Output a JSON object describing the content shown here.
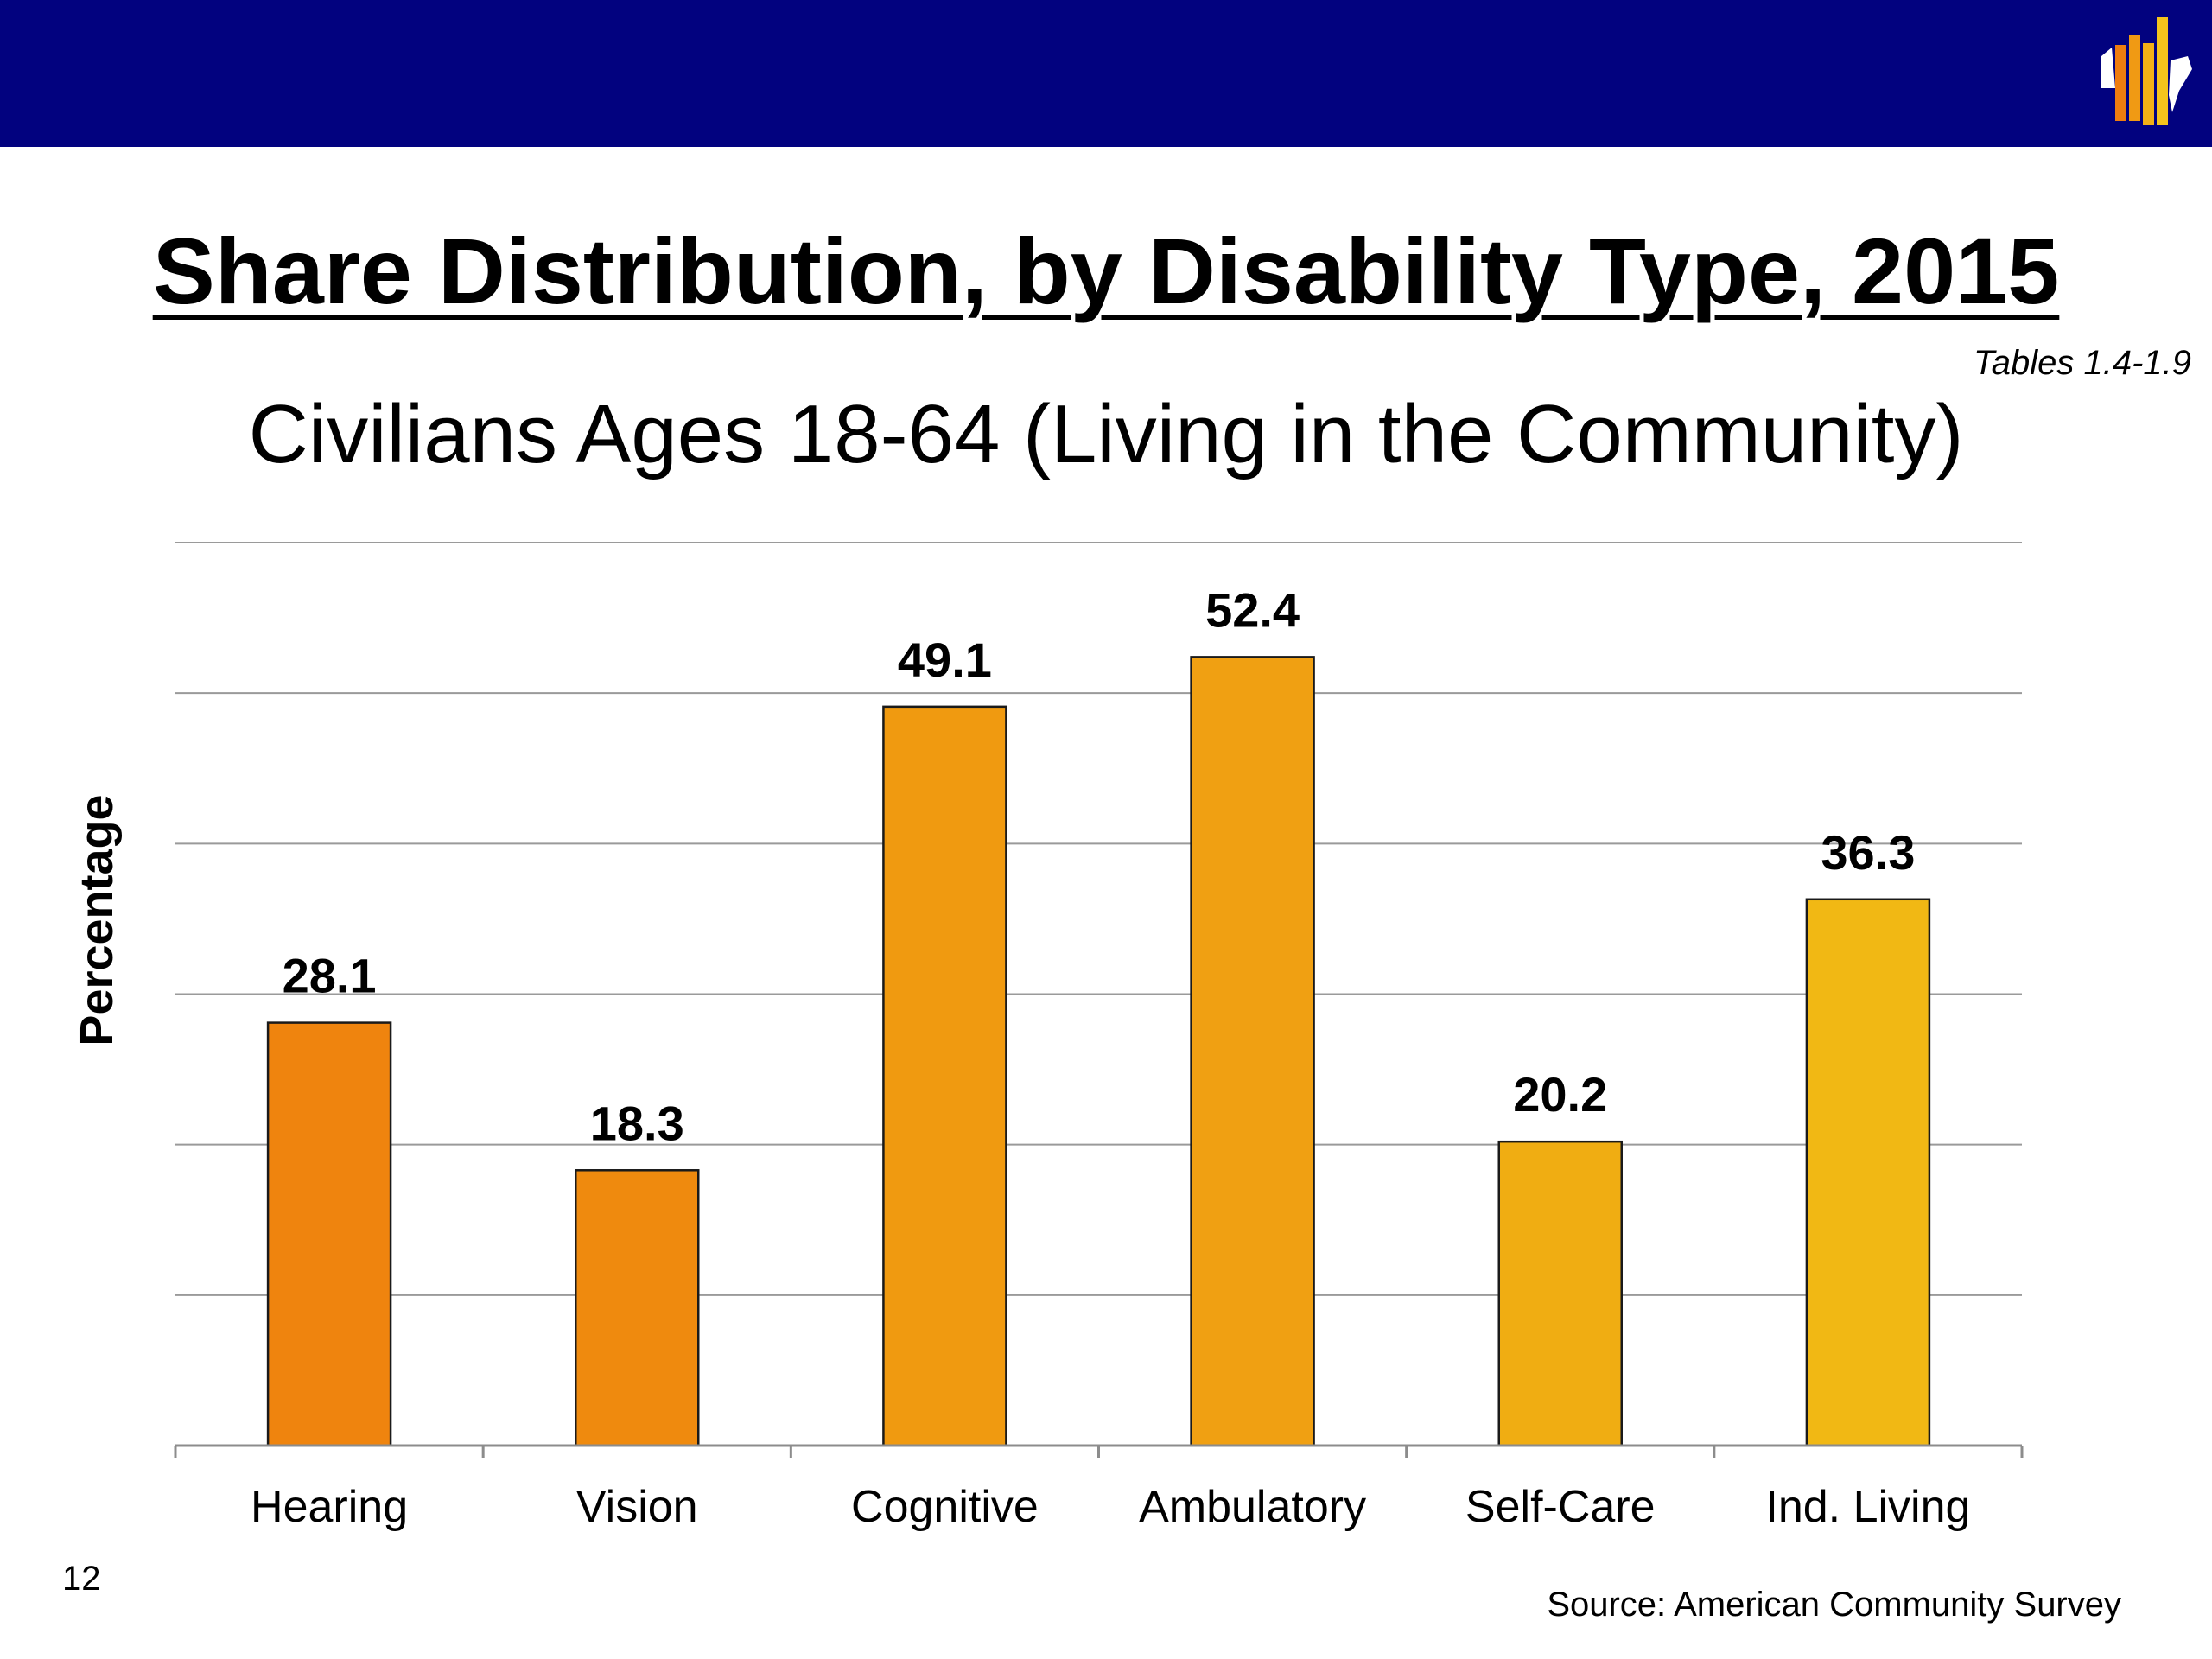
{
  "slide": {
    "title": "Share Distribution, by Disability Type, 2015",
    "subtitle": "Civilians Ages 18-64 (Living in the Community)",
    "tables_ref": "Tables 1.4-1.9",
    "slide_number": "12",
    "source": "Source: American Community Survey",
    "header_color": "#02027f",
    "logo_icon": "us-map-bar-chart-icon"
  },
  "chart_data": {
    "type": "bar",
    "title": "",
    "xlabel": "",
    "ylabel": "Percentage",
    "categories": [
      "Hearing",
      "Vision",
      "Cognitive",
      "Ambulatory",
      "Self-Care",
      "Ind. Living"
    ],
    "series": [
      {
        "values": [
          28.1,
          18.3,
          49.1,
          52.4,
          20.2,
          36.3
        ]
      }
    ],
    "ylim": [
      0,
      60
    ],
    "gridlines": [
      10,
      20,
      30,
      40,
      50,
      60
    ],
    "grid": true,
    "y_tick_labels_shown": false,
    "data_labels": true,
    "legend": "none",
    "bar_colors": [
      "#ef840e",
      "#ef8a0e",
      "#f09a10",
      "#f0a012",
      "#f0ad12",
      "#f1b814"
    ]
  }
}
